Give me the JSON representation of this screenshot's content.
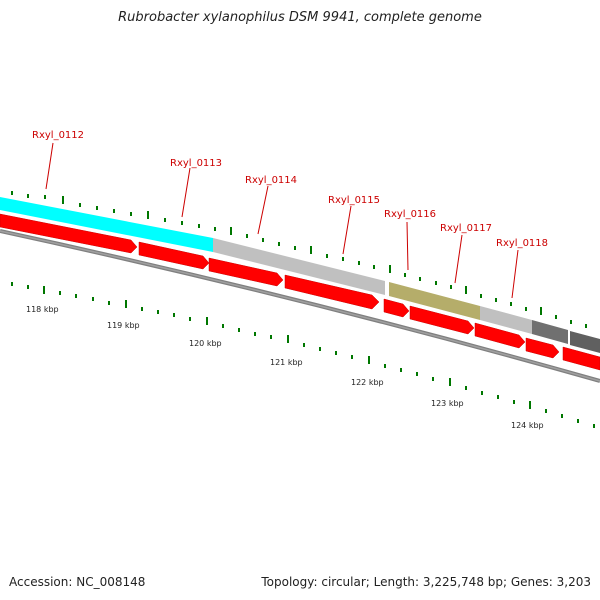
{
  "title": "Rubrobacter xylanophilus DSM 9941, complete genome",
  "footer": {
    "accession": "Accession: NC_008148",
    "summary": "Topology: circular; Length: 3,225,748 bp; Genes: 3,203"
  },
  "gene_labels": [
    "Rxyl_0112",
    "Rxyl_0113",
    "Rxyl_0114",
    "Rxyl_0115",
    "Rxyl_0116",
    "Rxyl_0117",
    "Rxyl_0118"
  ],
  "scale_labels": [
    "118 kbp",
    "119 kbp",
    "120 kbp",
    "121 kbp",
    "122 kbp",
    "123 kbp",
    "124 kbp"
  ],
  "colors": {
    "cyan_band": "#00ffff",
    "light_gray_band": "#c0c0c0",
    "olive_band": "#b5ad6a",
    "dark_gray_band": "#707070",
    "gene_red": "#ff0000",
    "gene_red_dark": "#cc0000",
    "backbone": "#808080",
    "tick_green": "#007700",
    "label_red": "#cc0000"
  }
}
